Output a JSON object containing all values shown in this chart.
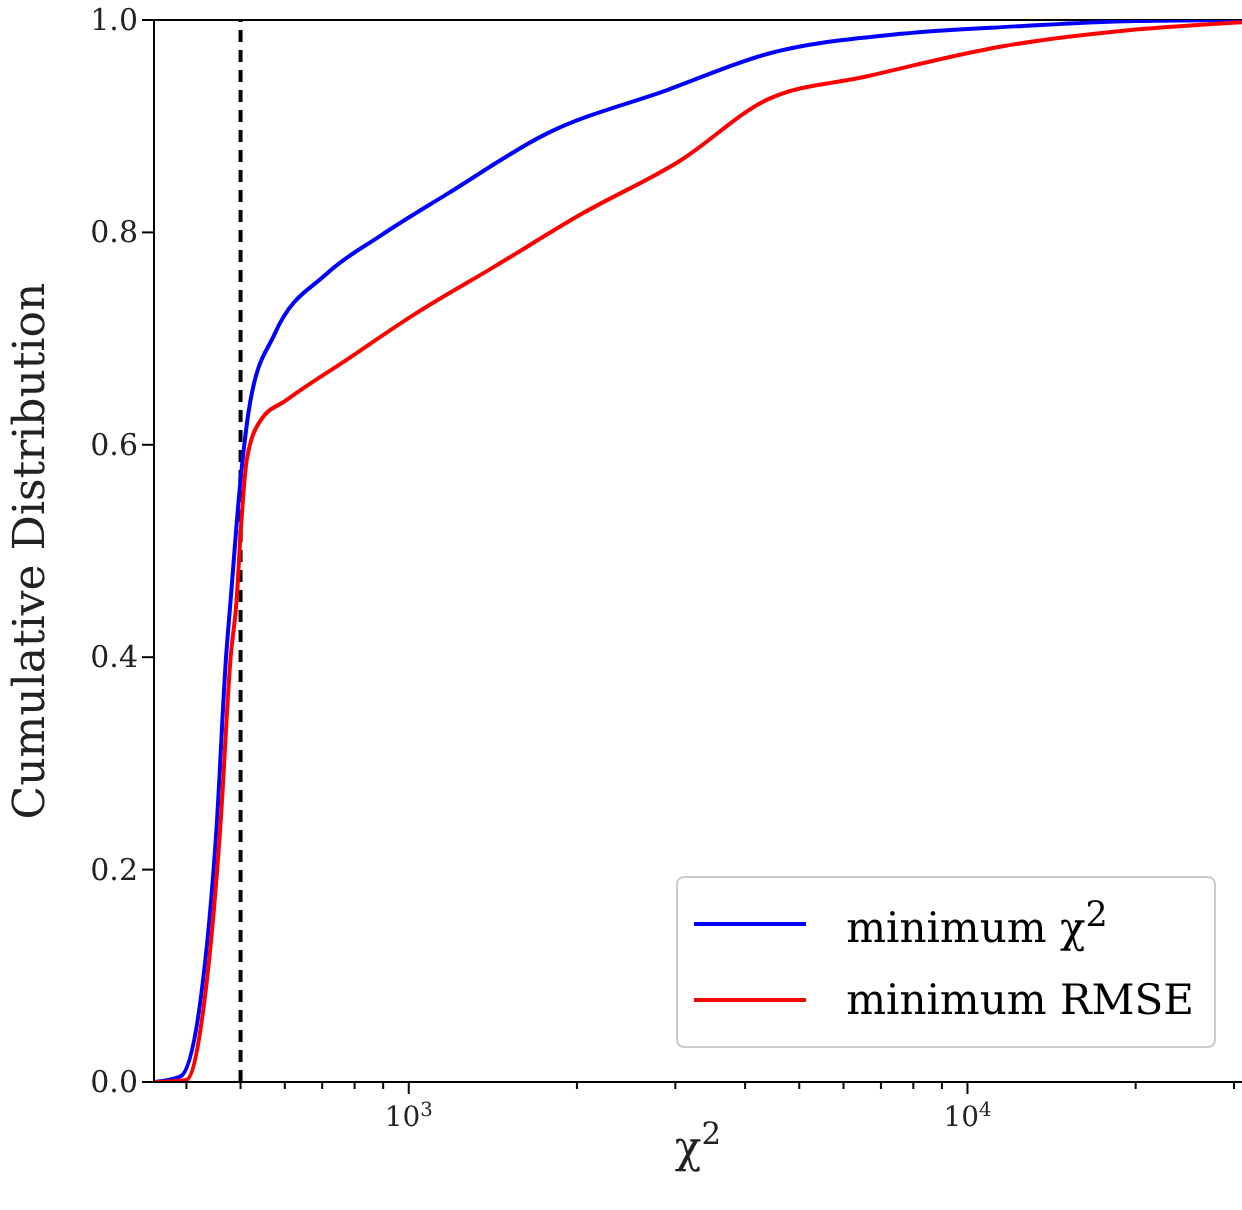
{
  "chart_data": {
    "type": "line",
    "xlabel": "χ$^{2}$",
    "ylabel": "Cumulative Distribution",
    "log": "x",
    "grid": false,
    "legend": "bottom right",
    "line_style": "solid",
    "marker": "none",
    "xlim": [
      350,
      31000
    ],
    "xticks": [
      {
        "value": 400,
        "label": null
      },
      {
        "value": 500,
        "label": null
      },
      {
        "value": 600,
        "label": null
      },
      {
        "value": 700,
        "label": null
      },
      {
        "value": 800,
        "label": null
      },
      {
        "value": 900,
        "label": null
      },
      {
        "value": 1000,
        "label": "10$^{3}$"
      },
      {
        "value": 2000,
        "label": null
      },
      {
        "value": 3000,
        "label": null
      },
      {
        "value": 4000,
        "label": null
      },
      {
        "value": 5000,
        "label": null
      },
      {
        "value": 6000,
        "label": null
      },
      {
        "value": 7000,
        "label": null
      },
      {
        "value": 8000,
        "label": null
      },
      {
        "value": 9000,
        "label": null
      },
      {
        "value": 10000,
        "label": "10$^{4}$"
      },
      {
        "value": 20000,
        "label": null
      },
      {
        "value": 30000,
        "label": null
      }
    ],
    "ylim": [
      0,
      1
    ],
    "yticks": [
      {
        "value": 0,
        "label": "0.0"
      },
      {
        "value": 0.2,
        "label": "0.2"
      },
      {
        "value": 0.4,
        "label": "0.4"
      },
      {
        "value": 0.6,
        "label": "0.6"
      },
      {
        "value": 0.8,
        "label": "0.8"
      },
      {
        "value": 1,
        "label": "1.0"
      }
    ],
    "ref_lines": [
      {
        "axis": "x",
        "value": 500,
        "label": null,
        "color": "#000000",
        "line_style": "dashed"
      }
    ],
    "series": [
      {
        "name": "minimum χ$^{2}$",
        "color": "#0000ff",
        "x": [
          351,
          390,
          424,
          453,
          471,
          480,
          500,
          521,
          575,
          713,
          891,
          1170,
          1766,
          2900,
          4380,
          7620,
          12190,
          20000,
          31000
        ],
        "values": [
          0,
          0.005,
          0.077,
          0.24,
          0.4,
          0.454,
          0.567,
          0.642,
          0.704,
          0.761,
          0.797,
          0.836,
          0.893,
          0.934,
          0.968,
          0.987,
          0.994,
          0.999,
          1
        ]
      },
      {
        "name": "minimum RMSE",
        "color": "#ff0000",
        "x": [
          351,
          400,
          431,
          460,
          480,
          492,
          500,
          513,
          543,
          604,
          774,
          1025,
          1426,
          2033,
          3070,
          4380,
          6620,
          11500,
          20000,
          31000
        ],
        "values": [
          0,
          0.002,
          0.077,
          0.24,
          0.4,
          0.454,
          0.516,
          0.586,
          0.623,
          0.642,
          0.68,
          0.723,
          0.768,
          0.817,
          0.868,
          0.925,
          0.947,
          0.975,
          0.991,
          0.998
        ]
      }
    ]
  }
}
